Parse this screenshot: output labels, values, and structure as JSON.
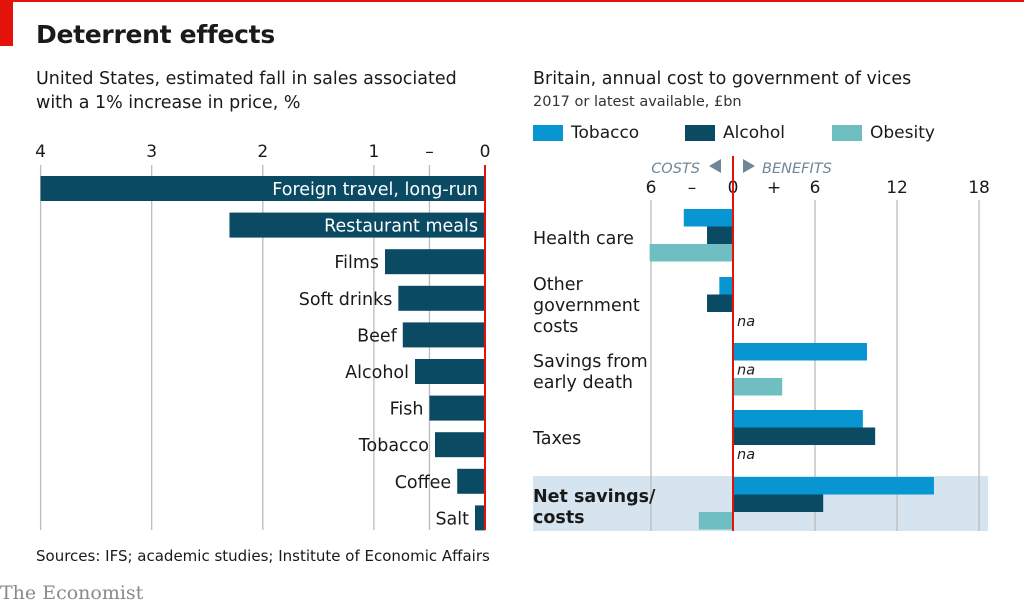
{
  "title": "Deterrent effects",
  "source": "Sources: IFS; academic studies; Institute of Economic Affairs",
  "brand": "The Economist",
  "colors": {
    "bar_left": "#0a4a63",
    "tobacco": "#0796d1",
    "alcohol": "#0a4a63",
    "obesity": "#6fbec2",
    "zero_line": "#e3120b",
    "grid": "#bcbcbc",
    "highlight": "#d5e4ee",
    "annotation": "#6f8796"
  },
  "chart_data": [
    {
      "type": "bar",
      "orientation": "horizontal",
      "title": "United States, estimated fall in sales associated with a 1% increase in price, %",
      "xlim": [
        4,
        0
      ],
      "x_ticks": [
        "4",
        "3",
        "2",
        "1",
        "–",
        "0"
      ],
      "categories": [
        "Foreign travel, long-run",
        "Restaurant meals",
        "Films",
        "Soft drinks",
        "Beef",
        "Alcohol",
        "Fish",
        "Tobacco",
        "Coffee",
        "Salt"
      ],
      "values": [
        4.0,
        2.3,
        0.9,
        0.78,
        0.74,
        0.63,
        0.5,
        0.45,
        0.25,
        0.09
      ]
    },
    {
      "type": "bar",
      "orientation": "horizontal",
      "title": "Britain, annual cost to government of vices",
      "subtitle": "2017 or latest available, £bn",
      "xlim": [
        -6,
        18
      ],
      "x_ticks": [
        "6",
        "–",
        "0",
        "+",
        "6",
        "12",
        "18"
      ],
      "direction_labels": {
        "costs": "COSTS",
        "benefits": "BENEFITS"
      },
      "legend": [
        "Tobacco",
        "Alcohol",
        "Obesity"
      ],
      "categories": [
        "Health care",
        "Other government costs",
        "Savings from early death",
        "Taxes",
        "Net savings/ costs"
      ],
      "category_labels": [
        [
          "Health care"
        ],
        [
          "Other",
          "government",
          "costs"
        ],
        [
          "Savings from",
          "early death"
        ],
        [
          "Taxes"
        ],
        [
          "Net savings/",
          "costs"
        ]
      ],
      "highlight_category": "Net savings/ costs",
      "na_label": "na",
      "series": [
        {
          "name": "Tobacco",
          "values": [
            -3.6,
            -1.0,
            9.8,
            9.5,
            14.7
          ]
        },
        {
          "name": "Alcohol",
          "values": [
            -1.9,
            -1.9,
            null,
            10.4,
            6.6
          ]
        },
        {
          "name": "Obesity",
          "values": [
            -6.1,
            null,
            3.6,
            null,
            -2.5
          ]
        }
      ]
    }
  ]
}
